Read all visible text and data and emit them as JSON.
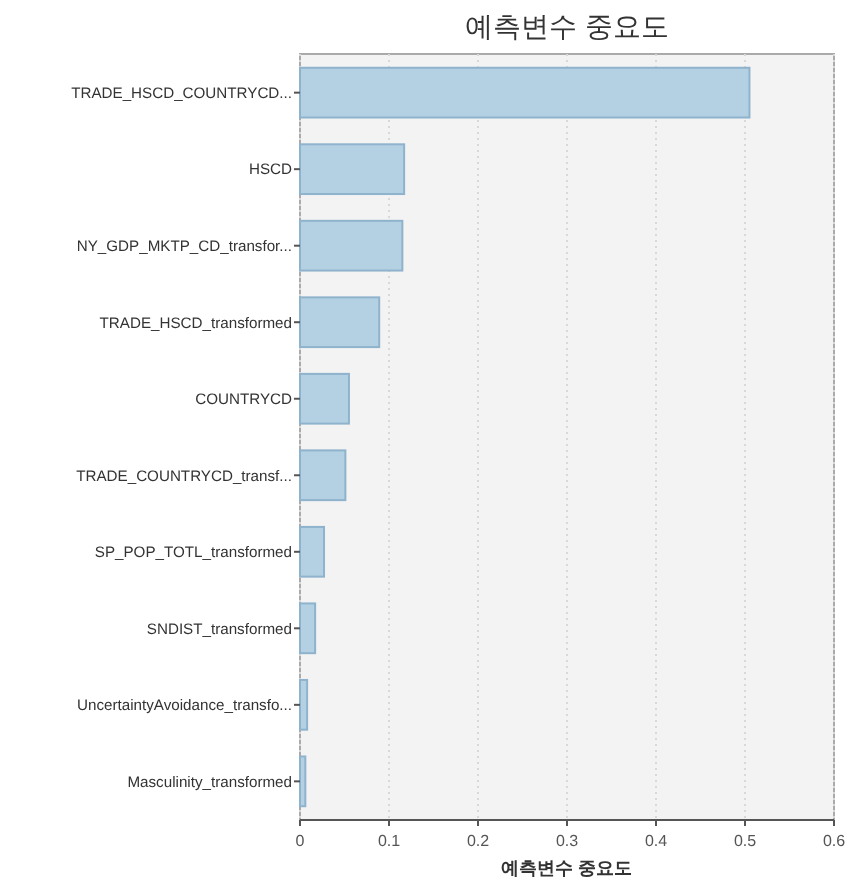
{
  "chart_data": {
    "type": "bar",
    "orientation": "horizontal",
    "title": "예측변수 중요도",
    "xlabel": "예측변수 중요도",
    "categories": [
      "TRADE_HSCD_COUNTRYCD...",
      "HSCD",
      "NY_GDP_MKTP_CD_transfor...",
      "TRADE_HSCD_transformed",
      "COUNTRYCD",
      "TRADE_COUNTRYCD_transf...",
      "SP_POP_TOTL_transformed",
      "SNDIST_transformed",
      "UncertaintyAvoidance_transfo...",
      "Masculinity_transformed"
    ],
    "values": [
      0.505,
      0.117,
      0.115,
      0.089,
      0.055,
      0.051,
      0.027,
      0.017,
      0.008,
      0.006
    ],
    "color": "#b3d1e3",
    "xlim": [
      0,
      0.6
    ],
    "xticks": [
      0,
      0.1,
      0.2,
      0.3,
      0.4,
      0.5,
      0.6
    ],
    "grid": "x"
  }
}
